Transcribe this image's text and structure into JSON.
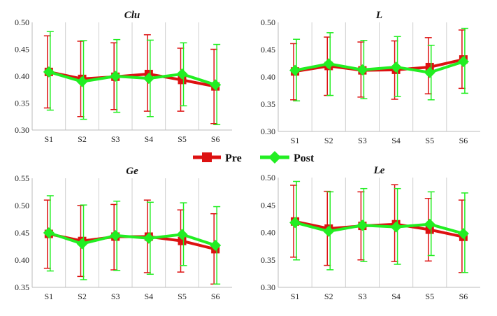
{
  "legend": {
    "pre_label": "Pre",
    "post_label": "Post"
  },
  "colors": {
    "pre": "#dd1111",
    "post": "#22ee22",
    "grid": "#cfcfcf",
    "axis": "#bbbbbb"
  },
  "chart_data": [
    {
      "type": "line",
      "title": "Clu",
      "categories": [
        "S1",
        "S2",
        "S3",
        "S4",
        "S5",
        "S6"
      ],
      "ylim": [
        0.3,
        0.5
      ],
      "yticks": [
        "0.30",
        "0.35",
        "0.40",
        "0.45",
        "0.50"
      ],
      "series": [
        {
          "name": "Pre",
          "values": [
            0.408,
            0.395,
            0.399,
            0.404,
            0.393,
            0.381
          ],
          "err_low": [
            0.341,
            0.325,
            0.338,
            0.335,
            0.335,
            0.312
          ],
          "err_high": [
            0.475,
            0.465,
            0.462,
            0.477,
            0.452,
            0.45
          ]
        },
        {
          "name": "Post",
          "values": [
            0.408,
            0.39,
            0.4,
            0.396,
            0.404,
            0.384
          ],
          "err_low": [
            0.337,
            0.32,
            0.333,
            0.325,
            0.345,
            0.31
          ],
          "err_high": [
            0.483,
            0.466,
            0.468,
            0.467,
            0.462,
            0.459
          ]
        }
      ]
    },
    {
      "type": "line",
      "title": "L",
      "categories": [
        "S1",
        "S2",
        "S3",
        "S4",
        "S5",
        "S6"
      ],
      "ylim": [
        0.3,
        0.5
      ],
      "yticks": [
        "0.30",
        "0.35",
        "0.40",
        "0.45",
        "0.50"
      ],
      "series": [
        {
          "name": "Pre",
          "values": [
            0.41,
            0.42,
            0.412,
            0.413,
            0.418,
            0.432
          ],
          "err_low": [
            0.358,
            0.366,
            0.363,
            0.359,
            0.369,
            0.379
          ],
          "err_high": [
            0.461,
            0.473,
            0.464,
            0.466,
            0.472,
            0.486
          ]
        },
        {
          "name": "Post",
          "values": [
            0.412,
            0.424,
            0.413,
            0.418,
            0.408,
            0.428
          ],
          "err_low": [
            0.356,
            0.366,
            0.36,
            0.364,
            0.358,
            0.37
          ],
          "err_high": [
            0.469,
            0.481,
            0.467,
            0.474,
            0.458,
            0.489
          ]
        }
      ]
    },
    {
      "type": "line",
      "title": "Ge",
      "categories": [
        "S1",
        "S2",
        "S3",
        "S4",
        "S5",
        "S6"
      ],
      "ylim": [
        0.35,
        0.55
      ],
      "yticks": [
        "0.35",
        "0.40",
        "0.45",
        "0.50",
        "0.55"
      ],
      "series": [
        {
          "name": "Pre",
          "values": [
            0.448,
            0.435,
            0.443,
            0.443,
            0.435,
            0.42
          ],
          "err_low": [
            0.385,
            0.37,
            0.382,
            0.377,
            0.378,
            0.356
          ],
          "err_high": [
            0.51,
            0.5,
            0.502,
            0.51,
            0.492,
            0.485
          ]
        },
        {
          "name": "Post",
          "values": [
            0.45,
            0.43,
            0.445,
            0.44,
            0.447,
            0.427
          ],
          "err_low": [
            0.38,
            0.364,
            0.381,
            0.374,
            0.39,
            0.356
          ],
          "err_high": [
            0.518,
            0.501,
            0.508,
            0.506,
            0.505,
            0.498
          ]
        }
      ]
    },
    {
      "type": "line",
      "title": "Le",
      "categories": [
        "S1",
        "S2",
        "S3",
        "S4",
        "S5",
        "S6"
      ],
      "ylim": [
        0.3,
        0.5
      ],
      "yticks": [
        "0.30",
        "0.35",
        "0.40",
        "0.45",
        "0.50"
      ],
      "series": [
        {
          "name": "Pre",
          "values": [
            0.42,
            0.407,
            0.412,
            0.415,
            0.405,
            0.392
          ],
          "err_low": [
            0.355,
            0.34,
            0.35,
            0.347,
            0.348,
            0.327
          ],
          "err_high": [
            0.486,
            0.475,
            0.474,
            0.487,
            0.462,
            0.459
          ]
        },
        {
          "name": "Post",
          "values": [
            0.418,
            0.402,
            0.413,
            0.41,
            0.415,
            0.398
          ],
          "err_low": [
            0.35,
            0.332,
            0.347,
            0.342,
            0.358,
            0.327
          ],
          "err_high": [
            0.493,
            0.474,
            0.48,
            0.48,
            0.474,
            0.472
          ]
        }
      ]
    }
  ]
}
